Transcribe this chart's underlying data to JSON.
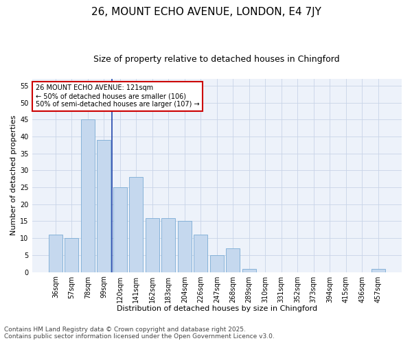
{
  "title": "26, MOUNT ECHO AVENUE, LONDON, E4 7JY",
  "subtitle": "Size of property relative to detached houses in Chingford",
  "xlabel": "Distribution of detached houses by size in Chingford",
  "ylabel": "Number of detached properties",
  "categories": [
    "36sqm",
    "57sqm",
    "78sqm",
    "99sqm",
    "120sqm",
    "141sqm",
    "162sqm",
    "183sqm",
    "204sqm",
    "226sqm",
    "247sqm",
    "268sqm",
    "289sqm",
    "310sqm",
    "331sqm",
    "352sqm",
    "373sqm",
    "394sqm",
    "415sqm",
    "436sqm",
    "457sqm"
  ],
  "values": [
    11,
    10,
    45,
    39,
    25,
    28,
    16,
    16,
    15,
    11,
    5,
    7,
    1,
    0,
    0,
    0,
    0,
    0,
    0,
    0,
    1
  ],
  "bar_color": "#c5d8ee",
  "bar_edge_color": "#7aabd4",
  "background_color": "#edf2fa",
  "grid_color": "#c8d4e8",
  "vline_color": "#2244aa",
  "vline_bin_index": 4,
  "annotation_text": "26 MOUNT ECHO AVENUE: 121sqm\n← 50% of detached houses are smaller (106)\n50% of semi-detached houses are larger (107) →",
  "annotation_box_edge_color": "#cc0000",
  "ylim": [
    0,
    57
  ],
  "yticks": [
    0,
    5,
    10,
    15,
    20,
    25,
    30,
    35,
    40,
    45,
    50,
    55
  ],
  "footer_line1": "Contains HM Land Registry data © Crown copyright and database right 2025.",
  "footer_line2": "Contains public sector information licensed under the Open Government Licence v3.0.",
  "title_fontsize": 11,
  "subtitle_fontsize": 9,
  "axis_label_fontsize": 8,
  "tick_fontsize": 7,
  "annotation_fontsize": 7,
  "footer_fontsize": 6.5
}
